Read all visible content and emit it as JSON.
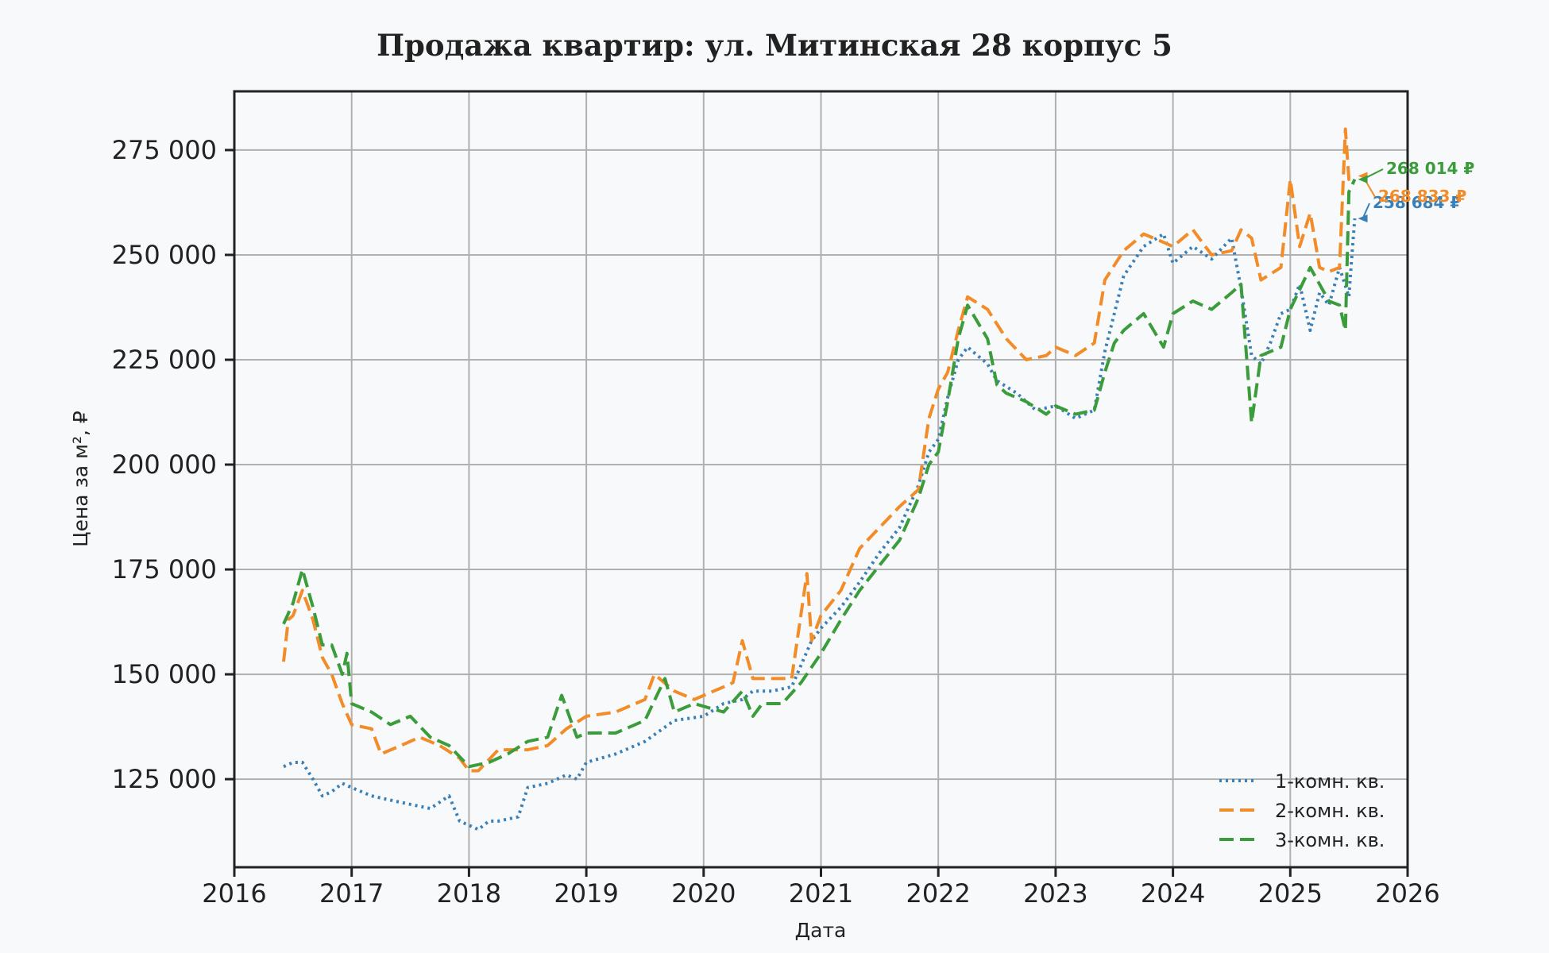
{
  "chart_data": {
    "type": "line",
    "title": "Продажа квартир: ул. Митинская 28 корпус 5",
    "xlabel": "Дата",
    "ylabel": "Цена за м², ₽",
    "xlim": [
      2016.0,
      2026.0
    ],
    "ylim": [
      104000,
      289000
    ],
    "x_ticks": [
      2016,
      2017,
      2018,
      2019,
      2020,
      2021,
      2022,
      2023,
      2024,
      2025,
      2026
    ],
    "y_ticks": [
      125000,
      150000,
      175000,
      200000,
      225000,
      250000,
      275000
    ],
    "y_tick_labels": [
      "125 000",
      "150 000",
      "175 000",
      "200 000",
      "225 000",
      "250 000",
      "275 000"
    ],
    "grid": true,
    "legend_position": "bottom-right",
    "series": [
      {
        "name": "1-комн. кв.",
        "color": "#3a7fb5",
        "dash": "dotted",
        "end_label": "258 684 ₽",
        "x": [
          2016.42,
          2016.5,
          2016.58,
          2016.67,
          2016.75,
          2016.83,
          2016.92,
          2017.0,
          2017.17,
          2017.33,
          2017.5,
          2017.67,
          2017.83,
          2017.92,
          2018.0,
          2018.08,
          2018.17,
          2018.25,
          2018.42,
          2018.5,
          2018.67,
          2018.83,
          2018.92,
          2019.0,
          2019.25,
          2019.5,
          2019.75,
          2020.0,
          2020.17,
          2020.33,
          2020.42,
          2020.58,
          2020.75,
          2020.92,
          2021.0,
          2021.17,
          2021.33,
          2021.5,
          2021.67,
          2021.83,
          2021.92,
          2022.0,
          2022.08,
          2022.17,
          2022.25,
          2022.42,
          2022.5,
          2022.67,
          2022.83,
          2023.0,
          2023.17,
          2023.33,
          2023.42,
          2023.58,
          2023.75,
          2023.92,
          2024.0,
          2024.17,
          2024.33,
          2024.5,
          2024.58,
          2024.67,
          2024.75,
          2024.83,
          2024.92,
          2025.0,
          2025.08,
          2025.17,
          2025.25,
          2025.33,
          2025.42,
          2025.5,
          2025.52,
          2025.55
        ],
        "y": [
          128000,
          129000,
          129000,
          125000,
          121000,
          122000,
          124000,
          123000,
          121000,
          120000,
          119000,
          118000,
          121000,
          115000,
          114000,
          113000,
          115000,
          115000,
          116000,
          123000,
          124000,
          126000,
          125000,
          129000,
          131000,
          134000,
          139000,
          140000,
          143000,
          144000,
          146000,
          146000,
          147000,
          158000,
          161000,
          166000,
          172000,
          179000,
          185000,
          195000,
          203000,
          206000,
          216000,
          225000,
          228000,
          224000,
          220000,
          217000,
          213000,
          214000,
          211000,
          213000,
          227000,
          245000,
          252000,
          255000,
          248000,
          252000,
          249000,
          254000,
          242000,
          226000,
          224000,
          229000,
          236000,
          237000,
          243000,
          232000,
          241000,
          238000,
          247000,
          240000,
          248000,
          258684
        ]
      },
      {
        "name": "2-комн. кв.",
        "color": "#f28c28",
        "dash": "dashed",
        "end_label": "268 833 ₽",
        "x": [
          2016.42,
          2016.46,
          2016.5,
          2016.58,
          2016.67,
          2016.75,
          2016.83,
          2016.92,
          2017.0,
          2017.17,
          2017.25,
          2017.42,
          2017.58,
          2017.75,
          2017.92,
          2018.0,
          2018.08,
          2018.25,
          2018.5,
          2018.67,
          2018.83,
          2019.0,
          2019.25,
          2019.5,
          2019.58,
          2019.75,
          2019.92,
          2020.17,
          2020.25,
          2020.33,
          2020.42,
          2020.58,
          2020.75,
          2020.88,
          2020.92,
          2021.0,
          2021.17,
          2021.33,
          2021.5,
          2021.67,
          2021.83,
          2021.92,
          2022.0,
          2022.08,
          2022.17,
          2022.25,
          2022.42,
          2022.58,
          2022.75,
          2022.92,
          2023.0,
          2023.17,
          2023.33,
          2023.42,
          2023.58,
          2023.75,
          2023.92,
          2024.0,
          2024.17,
          2024.33,
          2024.5,
          2024.58,
          2024.67,
          2024.75,
          2024.92,
          2025.0,
          2025.08,
          2025.17,
          2025.25,
          2025.33,
          2025.42,
          2025.47,
          2025.5,
          2025.55
        ],
        "y": [
          153000,
          163000,
          164000,
          170000,
          163000,
          154000,
          150000,
          143000,
          138000,
          137000,
          131000,
          133000,
          135000,
          133000,
          130000,
          127000,
          127000,
          132000,
          132000,
          133000,
          137000,
          140000,
          141000,
          144000,
          150000,
          146000,
          144000,
          147000,
          148000,
          158000,
          149000,
          149000,
          149000,
          174000,
          158000,
          164000,
          170000,
          180000,
          185000,
          190000,
          194000,
          211000,
          218000,
          222000,
          232000,
          240000,
          237000,
          230000,
          225000,
          226000,
          228000,
          226000,
          229000,
          244000,
          251000,
          255000,
          253000,
          252000,
          256000,
          250000,
          251000,
          256000,
          254000,
          244000,
          247000,
          268000,
          252000,
          260000,
          247000,
          246000,
          247000,
          280000,
          268000,
          268833
        ]
      },
      {
        "name": "3-комн. кв.",
        "color": "#3a9c3a",
        "dash": "dashed",
        "end_label": "268 014 ₽",
        "x": [
          2016.42,
          2016.5,
          2016.58,
          2016.67,
          2016.75,
          2016.83,
          2016.92,
          2016.96,
          2017.0,
          2017.17,
          2017.33,
          2017.5,
          2017.67,
          2017.83,
          2018.0,
          2018.17,
          2018.33,
          2018.5,
          2018.67,
          2018.79,
          2018.92,
          2019.0,
          2019.25,
          2019.5,
          2019.67,
          2019.75,
          2019.92,
          2020.17,
          2020.33,
          2020.42,
          2020.5,
          2020.67,
          2020.83,
          2021.0,
          2021.17,
          2021.33,
          2021.5,
          2021.67,
          2021.83,
          2021.92,
          2022.0,
          2022.08,
          2022.17,
          2022.25,
          2022.42,
          2022.5,
          2022.58,
          2022.75,
          2022.92,
          2023.0,
          2023.17,
          2023.33,
          2023.42,
          2023.5,
          2023.58,
          2023.75,
          2023.92,
          2024.0,
          2024.17,
          2024.33,
          2024.5,
          2024.58,
          2024.67,
          2024.75,
          2024.92,
          2025.0,
          2025.17,
          2025.33,
          2025.42,
          2025.47,
          2025.5,
          2025.55
        ],
        "y": [
          162000,
          167000,
          175000,
          166000,
          157000,
          157000,
          150000,
          155000,
          143000,
          141000,
          138000,
          140000,
          135000,
          133000,
          128000,
          129000,
          131000,
          134000,
          135000,
          145000,
          135000,
          136000,
          136000,
          139000,
          149000,
          141000,
          143000,
          141000,
          146000,
          140000,
          143000,
          143000,
          148000,
          155000,
          163000,
          170000,
          176000,
          182000,
          192000,
          200000,
          203000,
          215000,
          230000,
          238000,
          230000,
          219000,
          217000,
          215000,
          212000,
          214000,
          212000,
          213000,
          222000,
          229000,
          232000,
          236000,
          228000,
          236000,
          239000,
          237000,
          241000,
          243000,
          210000,
          226000,
          228000,
          237000,
          247000,
          239000,
          238000,
          232000,
          265000,
          268014
        ]
      }
    ]
  }
}
